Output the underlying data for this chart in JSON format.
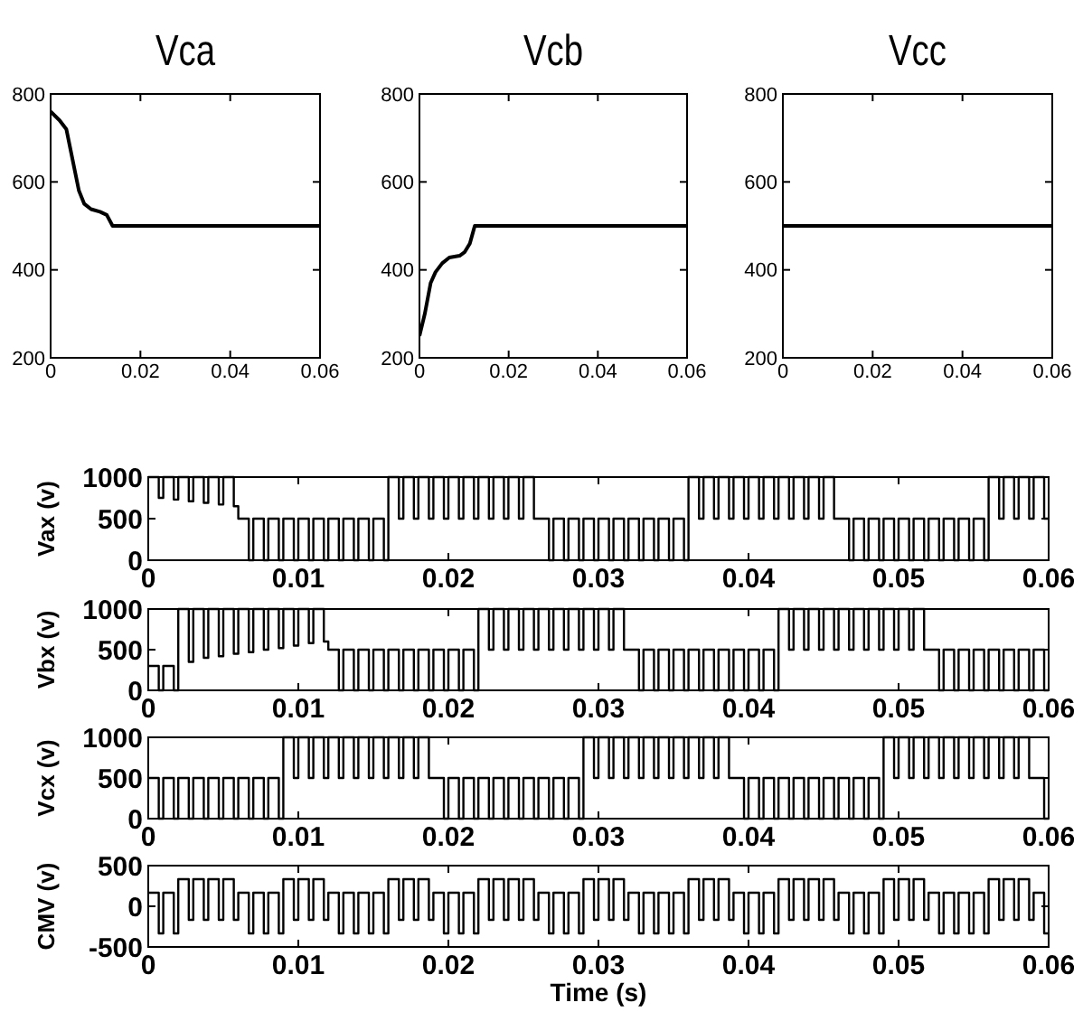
{
  "chart_data": [
    {
      "type": "line",
      "title": "Vca",
      "xlim": [
        0,
        0.06
      ],
      "xticks": [
        0,
        0.02,
        0.04,
        0.06
      ],
      "ylim": [
        200,
        800
      ],
      "yticks": [
        200,
        400,
        600,
        800
      ],
      "x": [
        0,
        0.002,
        0.0035,
        0.0045,
        0.0055,
        0.0063,
        0.0075,
        0.009,
        0.011,
        0.0125,
        0.0138,
        0.06
      ],
      "series": [
        {
          "color": "#000000",
          "values": [
            760,
            740,
            720,
            670,
            620,
            580,
            550,
            538,
            532,
            525,
            500,
            500
          ]
        }
      ]
    },
    {
      "type": "line",
      "title": "Vcb",
      "xlim": [
        0,
        0.06
      ],
      "xticks": [
        0,
        0.02,
        0.04,
        0.06
      ],
      "ylim": [
        200,
        800
      ],
      "yticks": [
        200,
        400,
        600,
        800
      ],
      "x": [
        0,
        0.0012,
        0.0025,
        0.0036,
        0.0051,
        0.0067,
        0.009,
        0.0101,
        0.0113,
        0.0124,
        0.06
      ],
      "series": [
        {
          "color": "#000000",
          "values": [
            250,
            300,
            370,
            395,
            415,
            428,
            432,
            440,
            460,
            500,
            500
          ]
        }
      ]
    },
    {
      "type": "line",
      "title": "Vcc",
      "xlim": [
        0,
        0.06
      ],
      "xticks": [
        0,
        0.02,
        0.04,
        0.06
      ],
      "ylim": [
        200,
        800
      ],
      "yticks": [
        200,
        400,
        600,
        800
      ],
      "x": [
        0,
        0.06
      ],
      "series": [
        {
          "color": "#000000",
          "values": [
            500,
            500
          ]
        }
      ]
    },
    {
      "type": "step",
      "ylabel": "Vax (v)",
      "xlim": [
        0,
        0.06
      ],
      "xticks": [
        0,
        0.01,
        0.02,
        0.03,
        0.04,
        0.05,
        0.06
      ],
      "ylim": [
        0,
        1000
      ],
      "yticks": [
        0,
        500,
        1000
      ],
      "x": [
        0,
        0.0007,
        0.001,
        0.0017,
        0.002,
        0.0027,
        0.003,
        0.0037,
        0.004,
        0.0047,
        0.005,
        0.0057,
        0.006,
        0.0067,
        0.007,
        0.0077,
        0.008,
        0.0087,
        0.009,
        0.0097,
        0.01,
        0.0107,
        0.011,
        0.0117,
        0.012,
        0.0127,
        0.013,
        0.0137,
        0.014,
        0.0147,
        0.015,
        0.0157,
        0.016,
        0.0167,
        0.017,
        0.0177,
        0.018,
        0.0187,
        0.019,
        0.0197,
        0.02,
        0.0207,
        0.021,
        0.0217,
        0.022,
        0.0227,
        0.023,
        0.0237,
        0.024,
        0.0247,
        0.025,
        0.0257,
        0.026,
        0.0267,
        0.027,
        0.0277,
        0.028,
        0.0287,
        0.029,
        0.0297,
        0.03,
        0.0307,
        0.031,
        0.0317,
        0.032,
        0.0327,
        0.033,
        0.0337,
        0.034,
        0.0347,
        0.035,
        0.0357,
        0.036,
        0.0367,
        0.037,
        0.0377,
        0.038,
        0.0387,
        0.039,
        0.0397,
        0.04,
        0.0407,
        0.041,
        0.0417,
        0.042,
        0.0427,
        0.043,
        0.0437,
        0.044,
        0.0447,
        0.045,
        0.0457,
        0.046,
        0.0467,
        0.047,
        0.0477,
        0.048,
        0.0487,
        0.049,
        0.0497,
        0.05,
        0.0507,
        0.051,
        0.0517,
        0.052,
        0.0527,
        0.053,
        0.0537,
        0.054,
        0.0547,
        0.055,
        0.0557,
        0.056,
        0.0567,
        0.057,
        0.0577,
        0.058,
        0.0587,
        0.059,
        0.0597,
        0.06
      ],
      "series": [
        {
          "color": "#000000",
          "values": [
            1000,
            750,
            1000,
            730,
            1000,
            710,
            1000,
            690,
            1000,
            670,
            1000,
            650,
            500,
            0,
            500,
            0,
            500,
            0,
            500,
            0,
            500,
            0,
            500,
            0,
            500,
            0,
            500,
            0,
            500,
            0,
            500,
            0,
            1000,
            500,
            1000,
            500,
            1000,
            500,
            1000,
            500,
            1000,
            500,
            1000,
            500,
            1000,
            500,
            1000,
            500,
            1000,
            500,
            1000,
            500,
            500,
            0,
            500,
            0,
            500,
            0,
            500,
            0,
            500,
            0,
            500,
            0,
            500,
            0,
            500,
            0,
            500,
            0,
            500,
            0,
            1000,
            500,
            1000,
            500,
            1000,
            500,
            1000,
            500,
            1000,
            500,
            1000,
            500,
            1000,
            500,
            1000,
            500,
            1000,
            500,
            1000,
            500,
            500,
            0,
            500,
            0,
            500,
            0,
            500,
            0,
            500,
            0,
            500,
            0,
            500,
            0,
            500,
            0,
            500,
            0,
            500,
            0,
            1000,
            500,
            1000,
            500,
            1000,
            500,
            1000,
            500,
            500
          ]
        }
      ]
    },
    {
      "type": "step",
      "ylabel": "Vbx (v)",
      "xlim": [
        0,
        0.06
      ],
      "xticks": [
        0,
        0.01,
        0.02,
        0.03,
        0.04,
        0.05,
        0.06
      ],
      "ylim": [
        0,
        1000
      ],
      "yticks": [
        0,
        500,
        1000
      ],
      "x": [
        0,
        0.0007,
        0.001,
        0.0017,
        0.002,
        0.0027,
        0.003,
        0.0037,
        0.004,
        0.0047,
        0.005,
        0.0057,
        0.006,
        0.0067,
        0.007,
        0.0077,
        0.008,
        0.0087,
        0.009,
        0.0097,
        0.01,
        0.0107,
        0.011,
        0.0117,
        0.012,
        0.0127,
        0.013,
        0.0137,
        0.014,
        0.0147,
        0.015,
        0.0157,
        0.016,
        0.0167,
        0.017,
        0.0177,
        0.018,
        0.0187,
        0.019,
        0.0197,
        0.02,
        0.0207,
        0.021,
        0.0217,
        0.022,
        0.0227,
        0.023,
        0.0237,
        0.024,
        0.0247,
        0.025,
        0.0257,
        0.026,
        0.0267,
        0.027,
        0.0277,
        0.028,
        0.0287,
        0.029,
        0.0297,
        0.03,
        0.0307,
        0.031,
        0.0317,
        0.032,
        0.0327,
        0.033,
        0.0337,
        0.034,
        0.0347,
        0.035,
        0.0357,
        0.036,
        0.0367,
        0.037,
        0.0377,
        0.038,
        0.0387,
        0.039,
        0.0397,
        0.04,
        0.0407,
        0.041,
        0.0417,
        0.042,
        0.0427,
        0.043,
        0.0437,
        0.044,
        0.0447,
        0.045,
        0.0457,
        0.046,
        0.0467,
        0.047,
        0.0477,
        0.048,
        0.0487,
        0.049,
        0.0497,
        0.05,
        0.0507,
        0.051,
        0.0517,
        0.052,
        0.0527,
        0.053,
        0.0537,
        0.054,
        0.0547,
        0.055,
        0.0557,
        0.056,
        0.0567,
        0.057,
        0.0577,
        0.058,
        0.0587,
        0.059,
        0.0597,
        0.06
      ],
      "series": [
        {
          "color": "#000000",
          "values": [
            300,
            0,
            300,
            0,
            1000,
            350,
            1000,
            400,
            1000,
            420,
            1000,
            450,
            1000,
            470,
            1000,
            500,
            1000,
            520,
            1000,
            550,
            1000,
            580,
            1000,
            600,
            500,
            0,
            500,
            0,
            500,
            0,
            500,
            0,
            500,
            0,
            500,
            0,
            500,
            0,
            500,
            0,
            500,
            0,
            500,
            0,
            1000,
            500,
            1000,
            500,
            1000,
            500,
            1000,
            500,
            1000,
            500,
            1000,
            500,
            1000,
            500,
            1000,
            500,
            1000,
            500,
            1000,
            500,
            500,
            0,
            500,
            0,
            500,
            0,
            500,
            0,
            500,
            0,
            500,
            0,
            500,
            0,
            500,
            0,
            500,
            0,
            500,
            0,
            1000,
            500,
            1000,
            500,
            1000,
            500,
            1000,
            500,
            1000,
            500,
            1000,
            500,
            1000,
            500,
            1000,
            500,
            1000,
            500,
            1000,
            500,
            500,
            0,
            500,
            0,
            500,
            0,
            500,
            0,
            500,
            0,
            500,
            0,
            500,
            0,
            500,
            0,
            0
          ]
        }
      ]
    },
    {
      "type": "step",
      "ylabel": "Vcx (v)",
      "xlim": [
        0,
        0.06
      ],
      "xticks": [
        0,
        0.01,
        0.02,
        0.03,
        0.04,
        0.05,
        0.06
      ],
      "ylim": [
        0,
        1000
      ],
      "yticks": [
        0,
        500,
        1000
      ],
      "x": [
        0,
        0.0007,
        0.001,
        0.0017,
        0.002,
        0.0027,
        0.003,
        0.0037,
        0.004,
        0.0047,
        0.005,
        0.0057,
        0.006,
        0.0067,
        0.007,
        0.0077,
        0.008,
        0.0087,
        0.009,
        0.0097,
        0.01,
        0.0107,
        0.011,
        0.0117,
        0.012,
        0.0127,
        0.013,
        0.0137,
        0.014,
        0.0147,
        0.015,
        0.0157,
        0.016,
        0.0167,
        0.017,
        0.0177,
        0.018,
        0.0187,
        0.019,
        0.0197,
        0.02,
        0.0207,
        0.021,
        0.0217,
        0.022,
        0.0227,
        0.023,
        0.0237,
        0.024,
        0.0247,
        0.025,
        0.0257,
        0.026,
        0.0267,
        0.027,
        0.0277,
        0.028,
        0.0287,
        0.029,
        0.0297,
        0.03,
        0.0307,
        0.031,
        0.0317,
        0.032,
        0.0327,
        0.033,
        0.0337,
        0.034,
        0.0347,
        0.035,
        0.0357,
        0.036,
        0.0367,
        0.037,
        0.0377,
        0.038,
        0.0387,
        0.039,
        0.0397,
        0.04,
        0.0407,
        0.041,
        0.0417,
        0.042,
        0.0427,
        0.043,
        0.0437,
        0.044,
        0.0447,
        0.045,
        0.0457,
        0.046,
        0.0467,
        0.047,
        0.0477,
        0.048,
        0.0487,
        0.049,
        0.0497,
        0.05,
        0.0507,
        0.051,
        0.0517,
        0.052,
        0.0527,
        0.053,
        0.0537,
        0.054,
        0.0547,
        0.055,
        0.0557,
        0.056,
        0.0567,
        0.057,
        0.0577,
        0.058,
        0.0587,
        0.059,
        0.0597,
        0.06
      ],
      "series": [
        {
          "color": "#000000",
          "values": [
            500,
            0,
            500,
            0,
            500,
            0,
            500,
            0,
            500,
            0,
            500,
            0,
            500,
            0,
            500,
            0,
            500,
            0,
            1000,
            500,
            1000,
            500,
            1000,
            500,
            1000,
            500,
            1000,
            500,
            1000,
            500,
            1000,
            500,
            1000,
            500,
            1000,
            500,
            1000,
            500,
            500,
            0,
            500,
            0,
            500,
            0,
            500,
            0,
            500,
            0,
            500,
            0,
            500,
            0,
            500,
            0,
            500,
            0,
            500,
            0,
            1000,
            500,
            1000,
            500,
            1000,
            500,
            1000,
            500,
            1000,
            500,
            1000,
            500,
            1000,
            500,
            1000,
            500,
            1000,
            500,
            1000,
            500,
            500,
            0,
            500,
            0,
            500,
            0,
            500,
            0,
            500,
            0,
            500,
            0,
            500,
            0,
            500,
            0,
            500,
            0,
            500,
            0,
            1000,
            500,
            1000,
            500,
            1000,
            500,
            1000,
            500,
            1000,
            500,
            1000,
            500,
            1000,
            500,
            1000,
            500,
            1000,
            500,
            1000,
            500,
            500,
            0,
            0
          ]
        }
      ]
    },
    {
      "type": "step",
      "ylabel": "CMV (v)",
      "xlabel": "Time (s)",
      "xlim": [
        0,
        0.06
      ],
      "xticks": [
        0,
        0.01,
        0.02,
        0.03,
        0.04,
        0.05,
        0.06
      ],
      "ylim": [
        -500,
        500
      ],
      "yticks": [
        -500,
        0,
        500
      ],
      "x": [
        0,
        0.0007,
        0.001,
        0.0017,
        0.002,
        0.0027,
        0.003,
        0.0037,
        0.004,
        0.0047,
        0.005,
        0.0057,
        0.006,
        0.0067,
        0.007,
        0.0077,
        0.008,
        0.0087,
        0.009,
        0.0097,
        0.01,
        0.0107,
        0.011,
        0.0117,
        0.012,
        0.0127,
        0.013,
        0.0137,
        0.014,
        0.0147,
        0.015,
        0.0157,
        0.016,
        0.0167,
        0.017,
        0.0177,
        0.018,
        0.0187,
        0.019,
        0.0197,
        0.02,
        0.0207,
        0.021,
        0.0217,
        0.022,
        0.0227,
        0.023,
        0.0237,
        0.024,
        0.0247,
        0.025,
        0.0257,
        0.026,
        0.0267,
        0.027,
        0.0277,
        0.028,
        0.0287,
        0.029,
        0.0297,
        0.03,
        0.0307,
        0.031,
        0.0317,
        0.032,
        0.0327,
        0.033,
        0.0337,
        0.034,
        0.0347,
        0.035,
        0.0357,
        0.036,
        0.0367,
        0.037,
        0.0377,
        0.038,
        0.0387,
        0.039,
        0.0397,
        0.04,
        0.0407,
        0.041,
        0.0417,
        0.042,
        0.0427,
        0.043,
        0.0437,
        0.044,
        0.0447,
        0.045,
        0.0457,
        0.046,
        0.0467,
        0.047,
        0.0477,
        0.048,
        0.0487,
        0.049,
        0.0497,
        0.05,
        0.0507,
        0.051,
        0.0517,
        0.052,
        0.0527,
        0.053,
        0.0537,
        0.054,
        0.0547,
        0.055,
        0.0557,
        0.056,
        0.0567,
        0.057,
        0.0577,
        0.058,
        0.0587,
        0.059,
        0.0597,
        0.06
      ],
      "series": [
        {
          "color": "#000000",
          "values": [
            167,
            -333,
            167,
            -333,
            333,
            -167,
            333,
            -167,
            333,
            -167,
            333,
            -167,
            167,
            -333,
            167,
            -333,
            167,
            -333,
            333,
            -167,
            333,
            -167,
            333,
            -167,
            167,
            -333,
            167,
            -333,
            167,
            -333,
            167,
            -333,
            333,
            -167,
            333,
            -167,
            333,
            -167,
            167,
            -333,
            167,
            -333,
            167,
            -333,
            333,
            -167,
            333,
            -167,
            333,
            -167,
            333,
            -167,
            167,
            -333,
            167,
            -333,
            167,
            -333,
            333,
            -167,
            333,
            -167,
            333,
            -167,
            167,
            -333,
            167,
            -333,
            167,
            -333,
            167,
            -333,
            333,
            -167,
            333,
            -167,
            333,
            -167,
            167,
            -333,
            167,
            -333,
            167,
            -333,
            333,
            -167,
            333,
            -167,
            333,
            -167,
            333,
            -167,
            167,
            -333,
            167,
            -333,
            167,
            -333,
            333,
            -167,
            333,
            -167,
            333,
            -167,
            167,
            -333,
            167,
            -333,
            167,
            -333,
            167,
            -333,
            333,
            -167,
            333,
            -167,
            333,
            -167,
            167,
            -333,
            -333
          ]
        }
      ]
    }
  ]
}
